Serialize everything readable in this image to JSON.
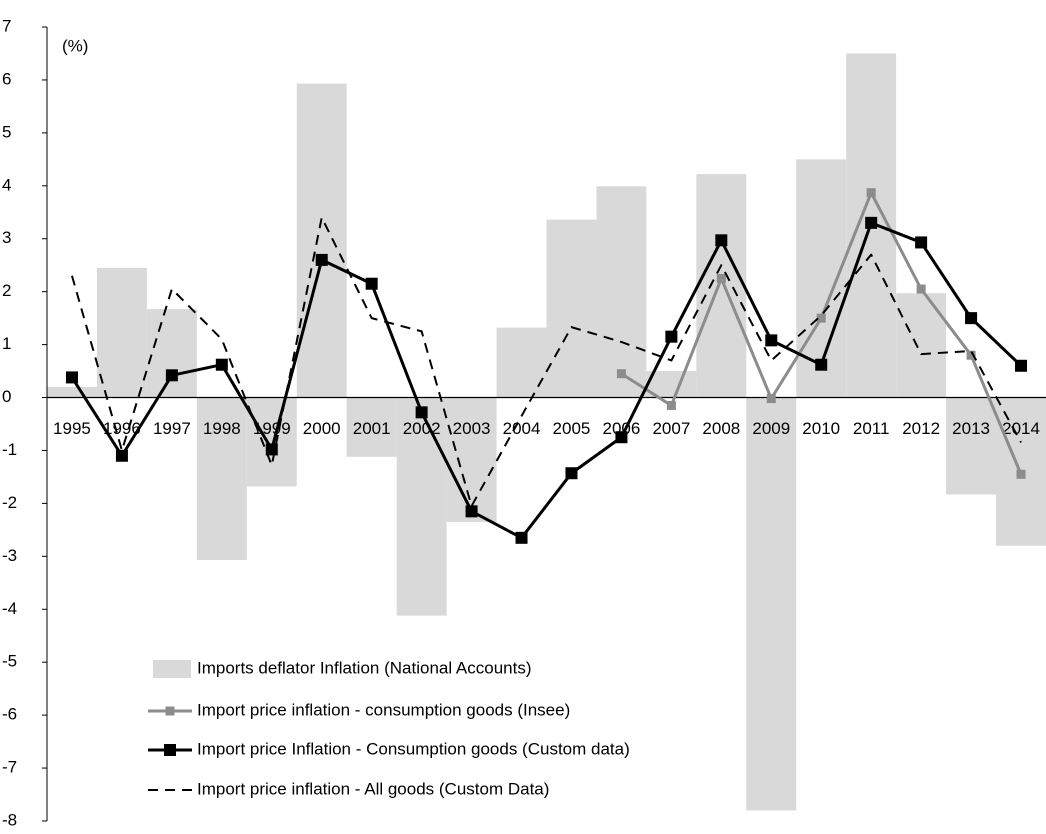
{
  "chart_data": {
    "type": "bar-line",
    "y_unit_label": "(%)",
    "categories": [
      "1995",
      "1996",
      "1997",
      "1998",
      "1999",
      "2000",
      "2001",
      "2002",
      "2003",
      "2004",
      "2005",
      "2006",
      "2007",
      "2008",
      "2009",
      "2010",
      "2011",
      "2012",
      "2013",
      "2014"
    ],
    "series": [
      {
        "name": "Imports deflator Inflation (National Accounts)",
        "style": "bar",
        "color": "#d9d9d9",
        "values": [
          0.2,
          2.45,
          1.67,
          -3.07,
          -1.68,
          5.93,
          -1.12,
          -4.12,
          -2.35,
          1.32,
          3.36,
          3.99,
          0.5,
          4.22,
          -7.8,
          4.5,
          6.5,
          1.97,
          -1.83,
          -2.8
        ]
      },
      {
        "name": "Import price inflation - consumption goods (Insee)",
        "style": "line",
        "marker": "square",
        "color": "#8c8c8c",
        "values": [
          null,
          null,
          null,
          null,
          null,
          null,
          null,
          null,
          null,
          null,
          null,
          0.45,
          -0.15,
          2.25,
          -0.02,
          1.5,
          3.87,
          2.05,
          0.8,
          -1.45
        ]
      },
      {
        "name": "Import price Inflation - Consumption goods (Custom data)",
        "style": "line",
        "marker": "square",
        "color": "#000000",
        "values": [
          0.38,
          -1.1,
          0.42,
          0.62,
          -0.98,
          2.6,
          2.15,
          -0.28,
          -2.15,
          -2.65,
          -1.43,
          -0.75,
          1.15,
          2.97,
          1.08,
          0.62,
          3.3,
          2.93,
          1.5,
          0.6
        ]
      },
      {
        "name": "Import price inflation - All goods (Custom Data)",
        "style": "dashed",
        "color": "#000000",
        "values": [
          2.3,
          -1.0,
          2.05,
          1.1,
          -1.28,
          3.4,
          1.5,
          1.25,
          -2.05,
          -0.35,
          1.33,
          1.05,
          0.7,
          2.5,
          0.7,
          1.55,
          2.7,
          0.82,
          0.88,
          -0.85
        ]
      }
    ],
    "ylim": [
      -8,
      7
    ],
    "yticks": [
      -8,
      -7,
      -6,
      -5,
      -4,
      -3,
      -2,
      -1,
      0,
      1,
      2,
      3,
      4,
      5,
      6,
      7
    ],
    "grid": false
  }
}
